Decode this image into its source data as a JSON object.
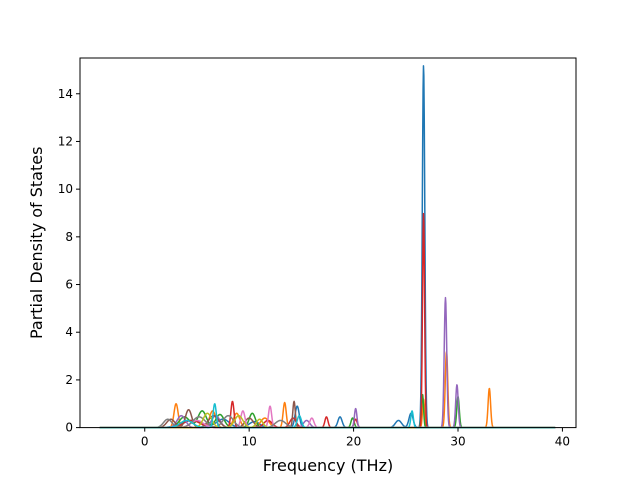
{
  "chart_data": {
    "type": "line",
    "title": "",
    "xlabel": "Frequency (THz)",
    "ylabel": "Partial Density of States",
    "xlim": [
      -6.2,
      41.3
    ],
    "ylim": [
      0,
      15.5
    ],
    "xticks": [
      0,
      10,
      20,
      30,
      40
    ],
    "yticks": [
      0,
      2,
      4,
      6,
      8,
      10,
      12,
      14
    ],
    "grid": false,
    "legend": "none",
    "x_range_of_data": [
      -4.3,
      39.3
    ],
    "series": [
      {
        "color": "#1f77b4",
        "peaks": [
          [
            26.7,
            15.2,
            0.12
          ],
          [
            25.5,
            0.6,
            0.2
          ],
          [
            24.3,
            0.3,
            0.3
          ],
          [
            14.6,
            0.9,
            0.2
          ],
          [
            18.7,
            0.45,
            0.2
          ],
          [
            4.5,
            0.3,
            1.0
          ],
          [
            7.5,
            0.35,
            0.6
          ],
          [
            10.5,
            0.25,
            0.5
          ]
        ]
      },
      {
        "color": "#ff7f0e",
        "peaks": [
          [
            3.0,
            1.0,
            0.2
          ],
          [
            6.5,
            0.7,
            0.3
          ],
          [
            8.8,
            0.6,
            0.3
          ],
          [
            13.4,
            1.05,
            0.15
          ],
          [
            28.9,
            3.2,
            0.12
          ],
          [
            33.0,
            1.65,
            0.12
          ],
          [
            26.7,
            1.2,
            0.1
          ],
          [
            11.5,
            0.4,
            0.4
          ]
        ]
      },
      {
        "color": "#2ca02c",
        "peaks": [
          [
            5.5,
            0.7,
            0.4
          ],
          [
            7.2,
            0.55,
            0.4
          ],
          [
            10.3,
            0.6,
            0.3
          ],
          [
            26.6,
            1.4,
            0.1
          ],
          [
            30.0,
            1.3,
            0.12
          ],
          [
            19.9,
            0.4,
            0.15
          ],
          [
            3.8,
            0.45,
            0.5
          ]
        ]
      },
      {
        "color": "#d62728",
        "peaks": [
          [
            8.4,
            1.1,
            0.15
          ],
          [
            26.7,
            9.0,
            0.1
          ],
          [
            17.4,
            0.45,
            0.15
          ],
          [
            14.2,
            0.4,
            0.3
          ],
          [
            4.5,
            0.3,
            0.8
          ],
          [
            11.8,
            0.3,
            0.4
          ],
          [
            20.2,
            0.35,
            0.15
          ]
        ]
      },
      {
        "color": "#9467bd",
        "peaks": [
          [
            28.8,
            5.45,
            0.12
          ],
          [
            29.9,
            1.8,
            0.12
          ],
          [
            20.2,
            0.8,
            0.12
          ],
          [
            3.5,
            0.5,
            0.4
          ],
          [
            6.8,
            0.5,
            0.4
          ],
          [
            15.5,
            0.3,
            0.3
          ]
        ]
      },
      {
        "color": "#8c564b",
        "peaks": [
          [
            4.2,
            0.75,
            0.3
          ],
          [
            14.3,
            1.1,
            0.12
          ],
          [
            6.6,
            0.5,
            0.5
          ],
          [
            10.0,
            0.4,
            0.4
          ],
          [
            2.5,
            0.35,
            0.4
          ]
        ]
      },
      {
        "color": "#e377c2",
        "peaks": [
          [
            12.0,
            0.9,
            0.15
          ],
          [
            9.4,
            0.7,
            0.2
          ],
          [
            16.0,
            0.4,
            0.2
          ],
          [
            5.0,
            0.3,
            0.6
          ]
        ]
      },
      {
        "color": "#7f7f7f",
        "peaks": [
          [
            2.2,
            0.35,
            0.4
          ],
          [
            5.2,
            0.45,
            0.6
          ],
          [
            8.0,
            0.5,
            0.5
          ],
          [
            13.0,
            0.3,
            0.5
          ]
        ]
      },
      {
        "color": "#bcbd22",
        "peaks": [
          [
            6.0,
            0.6,
            0.4
          ],
          [
            9.0,
            0.5,
            0.4
          ],
          [
            11.0,
            0.35,
            0.3
          ]
        ]
      },
      {
        "color": "#17becf",
        "peaks": [
          [
            6.7,
            1.0,
            0.15
          ],
          [
            25.6,
            0.7,
            0.12
          ],
          [
            14.8,
            0.5,
            0.2
          ],
          [
            4.0,
            0.3,
            0.6
          ]
        ]
      }
    ]
  }
}
